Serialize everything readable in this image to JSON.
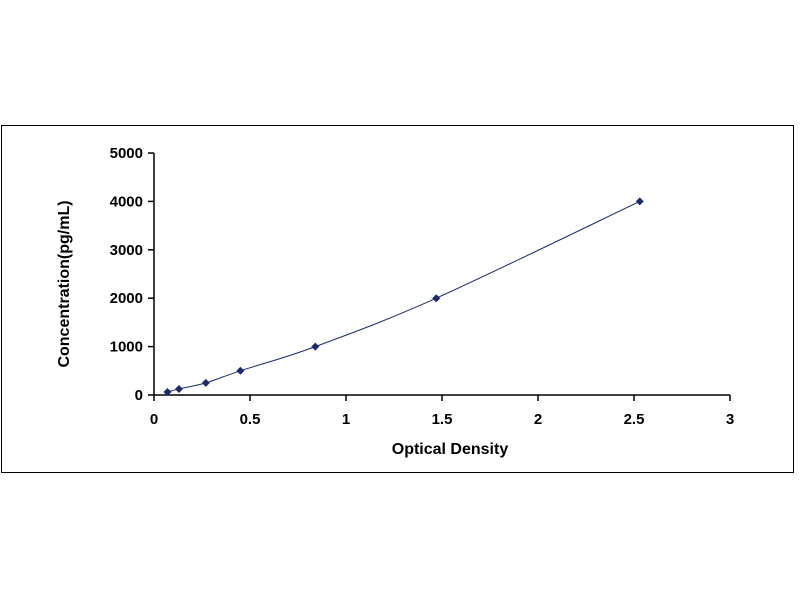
{
  "chart_data": {
    "type": "scatter",
    "title": "",
    "xlabel": "Optical Density",
    "ylabel": "Concentration(pg/mL)",
    "xlim": [
      0,
      3
    ],
    "ylim": [
      0,
      5000
    ],
    "xticks": [
      0,
      0.5,
      1,
      1.5,
      2,
      2.5,
      3
    ],
    "xtick_labels": [
      "0",
      "0.5",
      "1",
      "1.5",
      "2",
      "2.5",
      "3"
    ],
    "yticks": [
      0,
      1000,
      2000,
      3000,
      4000,
      5000
    ],
    "ytick_labels": [
      "0",
      "1000",
      "2000",
      "3000",
      "4000",
      "5000"
    ],
    "grid": false,
    "legend": "none",
    "trendline": "smooth curve through points",
    "colors": {
      "marker": "#1a2a6c",
      "line": "#1a2a6c",
      "axis": "#000000"
    },
    "series": [
      {
        "x": [
          0.07,
          0.13,
          0.27,
          0.45,
          0.84,
          1.47,
          2.53
        ],
        "y": [
          62.5,
          125,
          250,
          500,
          1000,
          2000,
          4000
        ]
      }
    ]
  }
}
